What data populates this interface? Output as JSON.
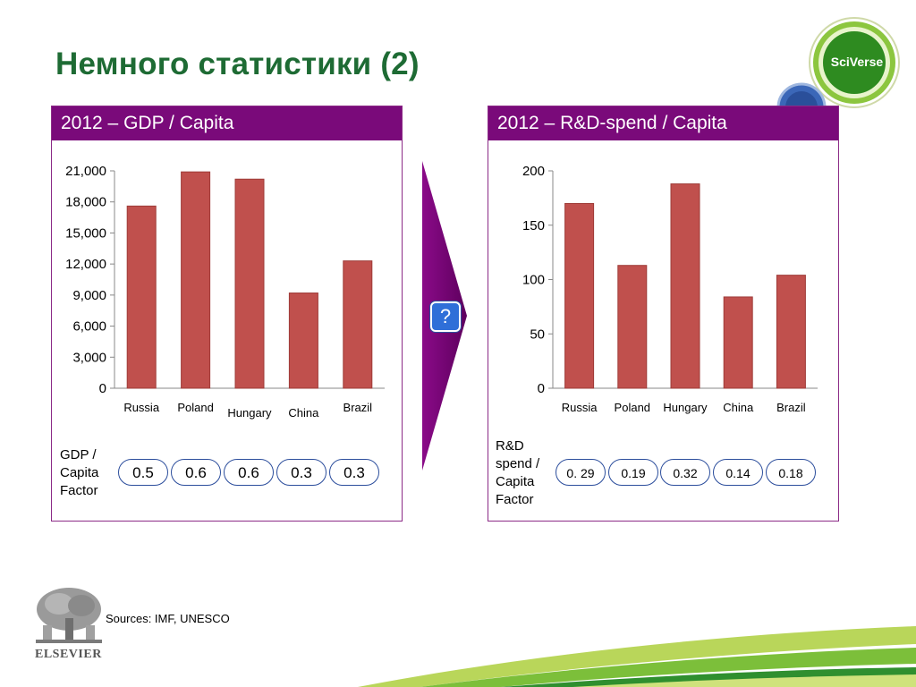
{
  "slide_title": "Немного статистики (2)",
  "left_panel": {
    "header": "2012 – GDP / Capita",
    "factor_label": "GDP / Capita Factor",
    "factor_label_lines": [
      "GDP /",
      "Capita",
      "Factor"
    ],
    "factors": [
      "0.5",
      "0.6",
      "0.6",
      "0.3",
      "0.3"
    ]
  },
  "right_panel": {
    "header": "2012 – R&D-spend / Capita",
    "factor_label": "R&D spend / Capita Factor",
    "factor_label_lines": [
      "R&D",
      "spend /",
      "Capita",
      "Factor"
    ],
    "factors": [
      "0. 29",
      "0.19",
      "0.32",
      "0.14",
      "0.18"
    ]
  },
  "arrow_badge": "?",
  "sources": "Sources: IMF, UNESCO",
  "logo_text": "ELSEVIER",
  "badge_text": "SciVerse",
  "colors": {
    "title": "#1e6b34",
    "panel_header": "#7a0a7a",
    "bar": "#c0504d",
    "pill_border": "#2b4d9c",
    "badge": "#2f6fd8"
  },
  "chart_data": [
    {
      "type": "bar",
      "title": "",
      "categories": [
        "Russia",
        "Poland",
        "Hungary",
        "China",
        "Brazil"
      ],
      "values": [
        17600,
        20900,
        20200,
        9200,
        12300
      ],
      "yticks": [
        "0",
        "3,000",
        "6,000",
        "9,000",
        "12,000",
        "15,000",
        "18,000",
        "21,000"
      ],
      "ylim": [
        0,
        21000
      ],
      "xlabel": "",
      "ylabel": "",
      "grid": false
    },
    {
      "type": "bar",
      "title": "",
      "categories": [
        "Russia",
        "Poland",
        "Hungary",
        "China",
        "Brazil"
      ],
      "values": [
        170,
        113,
        188,
        84,
        104
      ],
      "yticks": [
        "0",
        "50",
        "100",
        "150",
        "200"
      ],
      "ylim": [
        0,
        200
      ],
      "xlabel": "",
      "ylabel": "",
      "grid": false
    }
  ]
}
